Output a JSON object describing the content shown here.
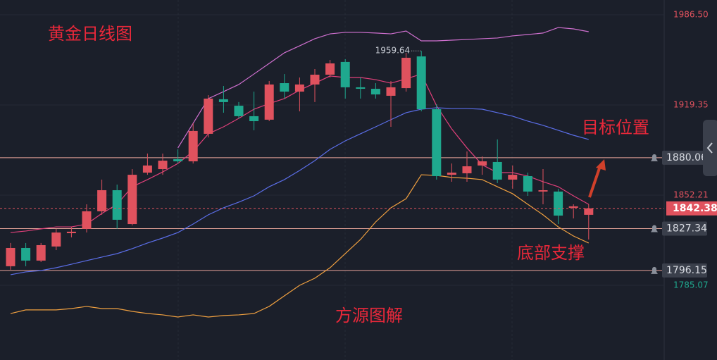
{
  "chart_data": {
    "type": "candlestick",
    "title": "黄金日线图",
    "annotations": [
      "目标位置",
      "底部支撑",
      "方源图解"
    ],
    "up_color": "#e0525e",
    "down_color": "#1fa88e",
    "ylim": [
      1729.5,
      1997.5
    ],
    "yticks": [
      {
        "value": 1986.5,
        "label": "1986.50"
      },
      1919.35,
      1852.21,
      1785.07
    ],
    "grid": true,
    "price_lines": [
      1880.06,
      1827.34,
      1796.15
    ],
    "candles": [
      [
        1799.3,
        1816.6,
        1796.7,
        1812.9
      ],
      [
        1812.9,
        1816.6,
        1799.3,
        1803.5
      ],
      [
        1803.5,
        1816.6,
        1802.4,
        1815.0
      ],
      [
        1814.0,
        1827.1,
        1811.3,
        1824.4
      ],
      [
        1823.9,
        1828.6,
        1820.8,
        1825.0
      ],
      [
        1827.1,
        1845.4,
        1824.4,
        1840.2
      ],
      [
        1840.2,
        1863.8,
        1837.6,
        1855.9
      ],
      [
        1855.9,
        1860.1,
        1827.1,
        1833.9
      ],
      [
        1830.7,
        1871.6,
        1829.7,
        1867.4
      ],
      [
        1869.0,
        1883.2,
        1867.4,
        1874.3
      ],
      [
        1871.6,
        1883.2,
        1867.4,
        1877.9
      ],
      [
        1879.0,
        1886.3,
        1875.8,
        1877.4
      ],
      [
        1877.4,
        1905.7,
        1875.8,
        1900.0
      ],
      [
        1897.9,
        1926.7,
        1895.2,
        1924.1
      ],
      [
        1923.6,
        1933.5,
        1913.6,
        1921.5
      ],
      [
        1918.8,
        1921.5,
        1909.4,
        1911.0
      ],
      [
        1911.0,
        1929.3,
        1900.5,
        1907.3
      ],
      [
        1908.4,
        1937.2,
        1907.3,
        1934.6
      ],
      [
        1935.6,
        1942.4,
        1924.1,
        1929.3
      ],
      [
        1929.3,
        1939.8,
        1914.6,
        1934.6
      ],
      [
        1934.6,
        1946.1,
        1921.5,
        1941.9
      ],
      [
        1941.9,
        1952.9,
        1939.8,
        1950.3
      ],
      [
        1951.4,
        1953.5,
        1924.1,
        1932.5
      ],
      [
        1932.5,
        1939.8,
        1924.1,
        1931.4
      ],
      [
        1931.4,
        1935.6,
        1924.1,
        1927.2
      ],
      [
        1926.2,
        1937.2,
        1903.1,
        1932.5
      ],
      [
        1931.9,
        1958.2,
        1929.3,
        1954.5
      ],
      [
        1955.5,
        1959.64,
        1914.6,
        1916.2
      ],
      [
        1916.2,
        1919.9,
        1863.8,
        1866.4
      ],
      [
        1867.4,
        1875.8,
        1862.2,
        1869.0
      ],
      [
        1868.5,
        1884.8,
        1862.2,
        1873.7
      ],
      [
        1874.3,
        1881.1,
        1867.4,
        1877.4
      ],
      [
        1876.9,
        1893.7,
        1861.2,
        1863.8
      ],
      [
        1863.8,
        1874.3,
        1857.0,
        1867.4
      ],
      [
        1866.4,
        1869.0,
        1851.7,
        1854.9
      ],
      [
        1854.9,
        1871.6,
        1845.4,
        1855.9
      ],
      [
        1854.9,
        1857.0,
        1830.7,
        1837.0
      ],
      [
        1842.8,
        1845.4,
        1834.9,
        1843.9
      ],
      [
        1837.6,
        1845.4,
        1819.2,
        1842.38
      ]
    ],
    "series": [
      {
        "color": "#e0407a",
        "values": [
          1824.4,
          1825.5,
          1827.1,
          1828.6,
          1828.6,
          1830.7,
          1838.6,
          1845.4,
          1858.5,
          1863.8,
          1869.5,
          1875.8,
          1884.8,
          1897.9,
          1903.1,
          1909.4,
          1916.2,
          1920.4,
          1924.1,
          1930.4,
          1935.6,
          1940.9,
          1939.8,
          1939.8,
          1938.2,
          1935.6,
          1938.8,
          1942.4,
          1918.8,
          1901.5,
          1887.4,
          1874.8,
          1869.0,
          1869.0,
          1866.4,
          1862.2,
          1858.5,
          1851.7,
          1845.4
        ]
      },
      {
        "color": "#5b6ee8",
        "values": [
          1793.0,
          1795.1,
          1796.1,
          1798.2,
          1800.8,
          1803.5,
          1806.1,
          1808.7,
          1812.4,
          1816.6,
          1820.3,
          1824.4,
          1830.7,
          1837.6,
          1842.8,
          1847.0,
          1851.7,
          1858.5,
          1863.8,
          1870.6,
          1877.9,
          1886.3,
          1892.6,
          1897.9,
          1903.1,
          1908.4,
          1913.6,
          1916.2,
          1917.3,
          1916.7,
          1916.7,
          1916.2,
          1913.6,
          1911.0,
          1907.3,
          1904.2,
          1900.5,
          1896.8,
          1893.7
        ]
      },
      {
        "color": "#d070d0",
        "values": [
          null,
          null,
          null,
          null,
          null,
          null,
          null,
          null,
          null,
          null,
          null,
          1887.4,
          1905.7,
          1924.1,
          1929.3,
          1934.6,
          1942.4,
          1950.3,
          1958.2,
          1963.4,
          1968.7,
          1972.3,
          1973.4,
          1973.4,
          1972.9,
          1972.3,
          1974.4,
          1967.1,
          1967.1,
          1967.6,
          1968.1,
          1968.7,
          1969.2,
          1970.8,
          1971.8,
          1972.9,
          1977.0,
          1976.0,
          1973.9
        ]
      },
      {
        "color": "#f0a040",
        "values": [
          1764.1,
          1766.8,
          1766.8,
          1766.8,
          1767.8,
          1769.4,
          1767.8,
          1767.8,
          1765.7,
          1764.1,
          1763.1,
          1761.5,
          1763.1,
          1761.5,
          1762.6,
          1763.1,
          1764.1,
          1769.4,
          1777.3,
          1785.1,
          1790.4,
          1798.2,
          1808.7,
          1819.2,
          1832.3,
          1842.8,
          1849.6,
          1867.4,
          1866.9,
          1865.4,
          1864.8,
          1863.8,
          1858.5,
          1853.3,
          1845.4,
          1837.6,
          1828.6,
          1821.8,
          1816.6
        ]
      }
    ]
  }
}
